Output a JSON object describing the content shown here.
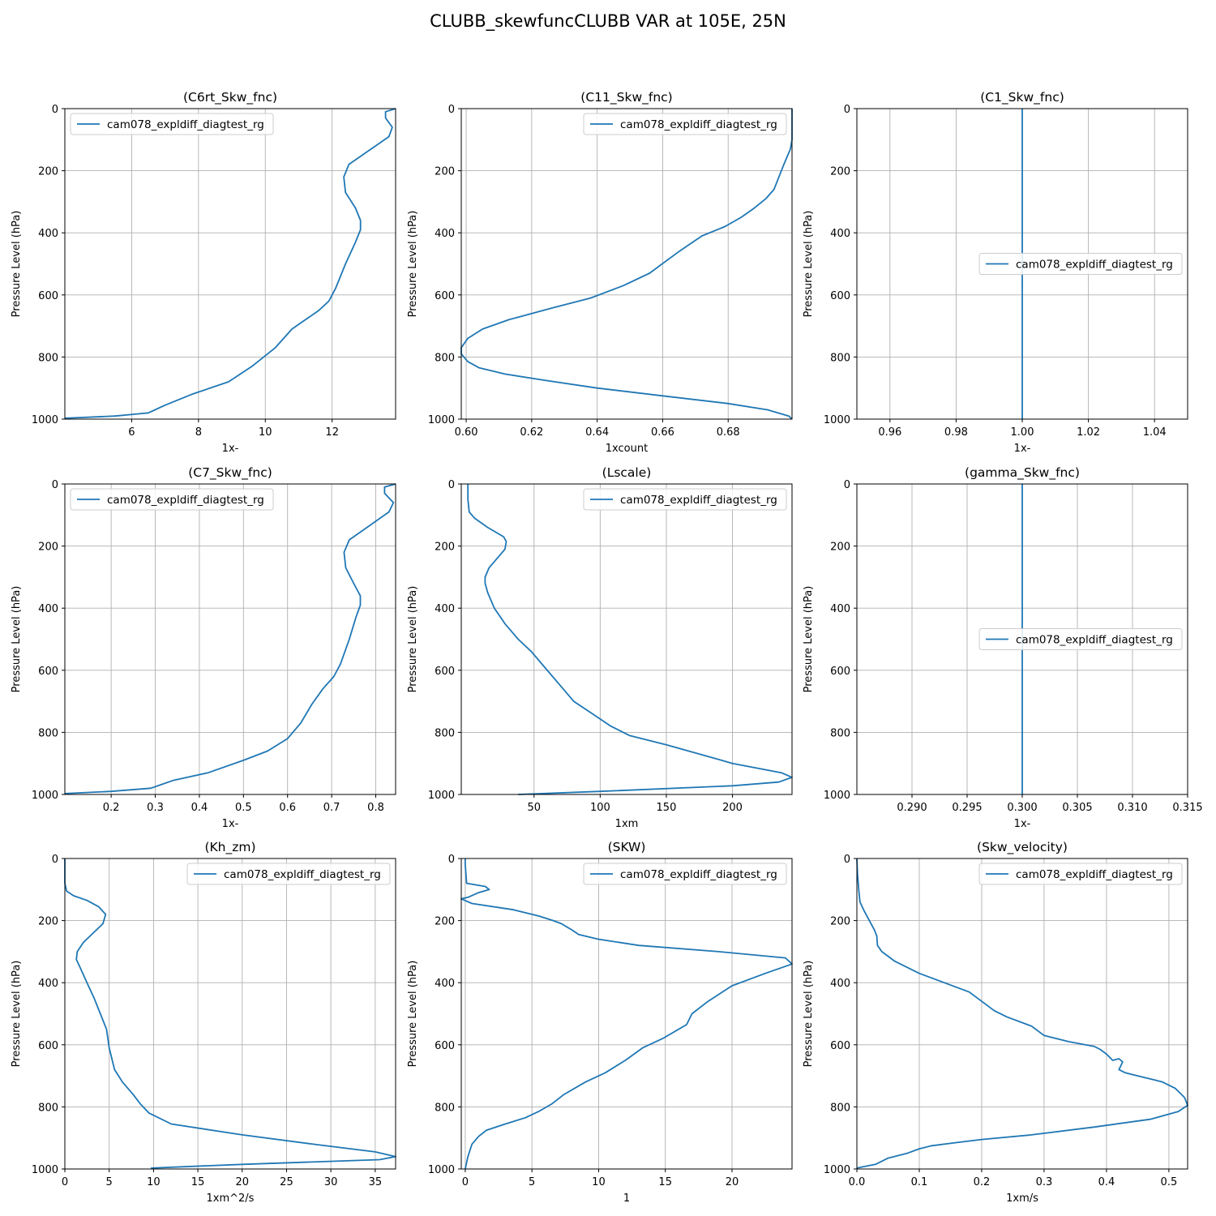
{
  "figure_title": "CLUBB_skewfuncCLUBB VAR at 105E, 25N",
  "colors": {
    "line": "#1f77b4",
    "grid": "#b0b0b0",
    "axes": "#000000",
    "legend_border": "#cccccc"
  },
  "chart_data": [
    {
      "type": "line",
      "title": "(C6rt_Skw_fnc)",
      "xlabel": "1x-",
      "ylabel": "Pressure Level (hPa)",
      "xlim": [
        4.0,
        13.9
      ],
      "ylim": [
        1000,
        0
      ],
      "xticks": [
        6,
        8,
        10,
        12
      ],
      "xtick_labels": [
        "6",
        "8",
        "10",
        "12"
      ],
      "yticks": [
        0,
        200,
        400,
        600,
        800,
        1000
      ],
      "ytick_labels": [
        "0",
        "200",
        "400",
        "600",
        "800",
        "1000"
      ],
      "grid": true,
      "legend_loc": "upper left",
      "series": [
        {
          "name": "cam078_expldiff_diagtest_rg",
          "x": [
            13.9,
            13.6,
            13.6,
            13.8,
            13.7,
            13.3,
            12.9,
            12.5,
            12.35,
            12.4,
            12.7,
            12.85,
            12.85,
            12.7,
            12.4,
            12.1,
            11.9,
            11.6,
            11.2,
            10.8,
            10.3,
            9.6,
            8.9,
            7.8,
            7.0,
            6.7,
            6.5,
            6.2,
            5.5,
            4.0
          ],
          "y": [
            0,
            10,
            30,
            60,
            90,
            120,
            150,
            180,
            220,
            270,
            320,
            360,
            390,
            430,
            500,
            580,
            620,
            650,
            680,
            710,
            770,
            830,
            880,
            920,
            955,
            970,
            980,
            983,
            990,
            997
          ]
        }
      ]
    },
    {
      "type": "line",
      "title": "(C11_Skw_fnc)",
      "xlabel": "1xcount",
      "ylabel": "Pressure Level (hPa)",
      "xlim": [
        0.5985,
        0.6995
      ],
      "ylim": [
        1000,
        0
      ],
      "xticks": [
        0.6,
        0.62,
        0.64,
        0.66,
        0.68
      ],
      "xtick_labels": [
        "0.60",
        "0.62",
        "0.64",
        "0.66",
        "0.68"
      ],
      "yticks": [
        0,
        200,
        400,
        600,
        800,
        1000
      ],
      "ytick_labels": [
        "0",
        "200",
        "400",
        "600",
        "800",
        "1000"
      ],
      "grid": true,
      "legend_loc": "upper right",
      "series": [
        {
          "name": "cam078_expldiff_diagtest_rg",
          "x": [
            0.6995,
            0.6995,
            0.699,
            0.697,
            0.6955,
            0.694,
            0.6915,
            0.688,
            0.684,
            0.679,
            0.672,
            0.665,
            0.656,
            0.648,
            0.638,
            0.627,
            0.613,
            0.605,
            0.6005,
            0.5985,
            0.5985,
            0.6005,
            0.604,
            0.612,
            0.624,
            0.64,
            0.66,
            0.68,
            0.692,
            0.6985,
            0.6995
          ],
          "y": [
            0,
            100,
            130,
            180,
            220,
            260,
            290,
            320,
            350,
            380,
            410,
            460,
            530,
            570,
            610,
            640,
            680,
            710,
            740,
            770,
            790,
            815,
            835,
            855,
            875,
            900,
            925,
            950,
            970,
            990,
            1000
          ]
        }
      ]
    },
    {
      "type": "line",
      "title": "(C1_Skw_fnc)",
      "xlabel": "1x-",
      "ylabel": "Pressure Level (hPa)",
      "xlim": [
        0.95,
        1.05
      ],
      "ylim": [
        1000,
        0
      ],
      "xticks": [
        0.96,
        0.98,
        1.0,
        1.02,
        1.04
      ],
      "xtick_labels": [
        "0.96",
        "0.98",
        "1.00",
        "1.02",
        "1.04"
      ],
      "yticks": [
        0,
        200,
        400,
        600,
        800,
        1000
      ],
      "ytick_labels": [
        "0",
        "200",
        "400",
        "600",
        "800",
        "1000"
      ],
      "grid": true,
      "legend_loc": "center right",
      "series": [
        {
          "name": "cam078_expldiff_diagtest_rg",
          "x": [
            1.0,
            1.0
          ],
          "y": [
            0,
            1000
          ]
        }
      ]
    },
    {
      "type": "line",
      "title": "(C7_Skw_fnc)",
      "xlabel": "1x-",
      "ylabel": "Pressure Level (hPa)",
      "xlim": [
        0.095,
        0.845
      ],
      "ylim": [
        1000,
        0
      ],
      "xticks": [
        0.2,
        0.3,
        0.4,
        0.5,
        0.6,
        0.7,
        0.8
      ],
      "xtick_labels": [
        "0.2",
        "0.3",
        "0.4",
        "0.5",
        "0.6",
        "0.7",
        "0.8"
      ],
      "yticks": [
        0,
        200,
        400,
        600,
        800,
        1000
      ],
      "ytick_labels": [
        "0",
        "200",
        "400",
        "600",
        "800",
        "1000"
      ],
      "grid": true,
      "legend_loc": "upper left",
      "series": [
        {
          "name": "cam078_expldiff_diagtest_rg",
          "x": [
            0.845,
            0.82,
            0.82,
            0.84,
            0.83,
            0.8,
            0.77,
            0.74,
            0.728,
            0.732,
            0.75,
            0.765,
            0.765,
            0.755,
            0.74,
            0.72,
            0.705,
            0.68,
            0.655,
            0.63,
            0.6,
            0.555,
            0.5,
            0.42,
            0.34,
            0.31,
            0.29,
            0.2,
            0.095
          ],
          "y": [
            0,
            10,
            30,
            60,
            90,
            120,
            150,
            180,
            220,
            270,
            320,
            360,
            390,
            430,
            500,
            580,
            620,
            660,
            710,
            770,
            820,
            860,
            890,
            930,
            955,
            970,
            980,
            990,
            997
          ]
        }
      ]
    },
    {
      "type": "line",
      "title": "(Lscale)",
      "xlabel": "1xm",
      "ylabel": "Pressure Level (hPa)",
      "xlim": [
        -5,
        245
      ],
      "ylim": [
        1000,
        0
      ],
      "xticks": [
        50,
        100,
        150,
        200
      ],
      "xtick_labels": [
        "50",
        "100",
        "150",
        "200"
      ],
      "yticks": [
        0,
        200,
        400,
        600,
        800,
        1000
      ],
      "ytick_labels": [
        "0",
        "200",
        "400",
        "600",
        "800",
        "1000"
      ],
      "grid": true,
      "legend_loc": "upper right",
      "series": [
        {
          "name": "cam078_expldiff_diagtest_rg",
          "x": [
            0,
            0,
            1,
            5,
            15,
            27,
            29,
            28,
            22,
            16,
            13,
            13,
            15,
            20,
            28,
            38,
            48,
            58,
            68,
            80,
            94,
            108,
            122,
            150,
            200,
            237,
            245,
            235,
            200,
            100,
            38
          ],
          "y": [
            0,
            50,
            90,
            110,
            140,
            170,
            185,
            210,
            240,
            270,
            300,
            320,
            350,
            400,
            450,
            500,
            540,
            590,
            640,
            700,
            740,
            780,
            810,
            840,
            900,
            930,
            945,
            960,
            972,
            990,
            1000
          ]
        }
      ]
    },
    {
      "type": "line",
      "title": "(gamma_Skw_fnc)",
      "xlabel": "1x-",
      "ylabel": "Pressure Level (hPa)",
      "xlim": [
        0.285,
        0.315
      ],
      "ylim": [
        1000,
        0
      ],
      "xticks": [
        0.29,
        0.295,
        0.3,
        0.305,
        0.31,
        0.315
      ],
      "xtick_labels": [
        "0.290",
        "0.295",
        "0.300",
        "0.305",
        "0.310",
        "0.315"
      ],
      "yticks": [
        0,
        200,
        400,
        600,
        800,
        1000
      ],
      "ytick_labels": [
        "0",
        "200",
        "400",
        "600",
        "800",
        "1000"
      ],
      "grid": true,
      "legend_loc": "center right",
      "series": [
        {
          "name": "cam078_expldiff_diagtest_rg",
          "x": [
            0.3,
            0.3
          ],
          "y": [
            0,
            1000
          ]
        }
      ]
    },
    {
      "type": "line",
      "title": "(Kh_zm)",
      "xlabel": "1xm^2/s",
      "ylabel": "Pressure Level (hPa)",
      "xlim": [
        0,
        37.3
      ],
      "ylim": [
        1000,
        0
      ],
      "xticks": [
        0,
        5,
        10,
        15,
        20,
        25,
        30,
        35
      ],
      "xtick_labels": [
        "0",
        "5",
        "10",
        "15",
        "20",
        "25",
        "30",
        "35"
      ],
      "yticks": [
        0,
        200,
        400,
        600,
        800,
        1000
      ],
      "ytick_labels": [
        "0",
        "200",
        "400",
        "600",
        "800",
        "1000"
      ],
      "grid": true,
      "legend_loc": "upper right",
      "series": [
        {
          "name": "cam078_expldiff_diagtest_rg",
          "x": [
            0,
            0,
            0.2,
            1.0,
            2.5,
            3.8,
            4.6,
            4.3,
            3.2,
            2.1,
            1.4,
            1.3,
            1.7,
            2.5,
            3.3,
            4.0,
            4.7,
            5.0,
            5.6,
            6.5,
            7.7,
            8.5,
            9.5,
            12,
            20,
            28,
            35,
            37.3,
            35.5,
            20,
            9.7
          ],
          "y": [
            0,
            80,
            105,
            120,
            135,
            155,
            180,
            210,
            240,
            270,
            300,
            325,
            350,
            400,
            450,
            500,
            550,
            610,
            680,
            720,
            760,
            790,
            820,
            855,
            890,
            920,
            945,
            960,
            970,
            985,
            997
          ]
        }
      ]
    },
    {
      "type": "line",
      "title": "(SKW)",
      "xlabel": "1",
      "ylabel": "Pressure Level (hPa)",
      "xlim": [
        -0.3,
        24.5
      ],
      "ylim": [
        1000,
        0
      ],
      "xticks": [
        0,
        5,
        10,
        15,
        20
      ],
      "xtick_labels": [
        "0",
        "5",
        "10",
        "15",
        "20"
      ],
      "yticks": [
        0,
        200,
        400,
        600,
        800,
        1000
      ],
      "ytick_labels": [
        "0",
        "200",
        "400",
        "600",
        "800",
        "1000"
      ],
      "grid": true,
      "legend_loc": "upper right",
      "series": [
        {
          "name": "cam078_expldiff_diagtest_rg",
          "x": [
            0,
            0,
            0.1,
            1.5,
            1.8,
            1.0,
            0.2,
            -0.3,
            0.5,
            3.6,
            5.5,
            6.6,
            7.2,
            8.0,
            8.5,
            10.0,
            13.0,
            19.0,
            24.0,
            24.5,
            22.5,
            20.0,
            18.2,
            17.0,
            16.6,
            14.8,
            13.3,
            12.0,
            10.5,
            9.0,
            7.4,
            6.5,
            5.5,
            4.5,
            3.0,
            1.6,
            1.0,
            0.5,
            0.2,
            0
          ],
          "y": [
            0,
            20,
            80,
            90,
            100,
            110,
            125,
            130,
            145,
            165,
            185,
            200,
            210,
            230,
            245,
            260,
            280,
            300,
            320,
            340,
            370,
            410,
            460,
            500,
            535,
            580,
            610,
            650,
            690,
            720,
            760,
            790,
            815,
            835,
            855,
            875,
            895,
            920,
            960,
            1000
          ]
        }
      ]
    },
    {
      "type": "line",
      "title": "(Skw_velocity)",
      "xlabel": "1xm/s",
      "ylabel": "Pressure Level (hPa)",
      "xlim": [
        0,
        0.53
      ],
      "ylim": [
        1000,
        0
      ],
      "xticks": [
        0.0,
        0.1,
        0.2,
        0.3,
        0.4,
        0.5
      ],
      "xtick_labels": [
        "0.0",
        "0.1",
        "0.2",
        "0.3",
        "0.4",
        "0.5"
      ],
      "yticks": [
        0,
        200,
        400,
        600,
        800,
        1000
      ],
      "ytick_labels": [
        "0",
        "200",
        "400",
        "600",
        "800",
        "1000"
      ],
      "grid": true,
      "legend_loc": "upper right",
      "series": [
        {
          "name": "cam078_expldiff_diagtest_rg",
          "x": [
            0,
            0.001,
            0.003,
            0.005,
            0.012,
            0.02,
            0.028,
            0.032,
            0.033,
            0.04,
            0.06,
            0.1,
            0.14,
            0.18,
            0.2,
            0.22,
            0.24,
            0.28,
            0.3,
            0.31,
            0.34,
            0.38,
            0.39,
            0.4,
            0.41,
            0.42,
            0.426,
            0.42,
            0.43,
            0.46,
            0.48,
            0.49,
            0.51,
            0.525,
            0.53,
            0.515,
            0.47,
            0.38,
            0.28,
            0.2,
            0.16,
            0.12,
            0.1,
            0.08,
            0.05,
            0.03,
            0.01,
            0
          ],
          "y": [
            0,
            50,
            100,
            140,
            170,
            200,
            230,
            250,
            280,
            300,
            330,
            370,
            400,
            430,
            460,
            490,
            510,
            540,
            570,
            575,
            590,
            605,
            615,
            630,
            650,
            645,
            655,
            680,
            690,
            705,
            715,
            720,
            740,
            770,
            795,
            815,
            840,
            865,
            890,
            905,
            915,
            925,
            935,
            950,
            965,
            985,
            993,
            997
          ]
        }
      ]
    }
  ]
}
